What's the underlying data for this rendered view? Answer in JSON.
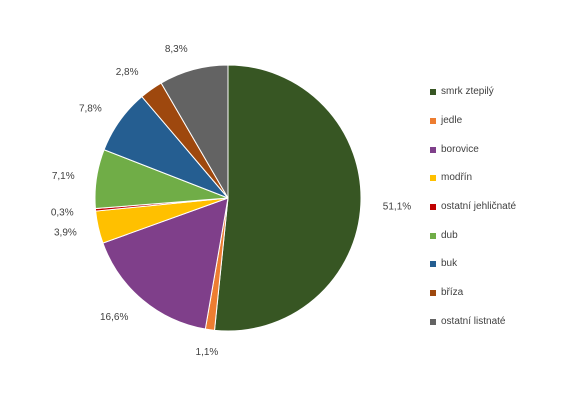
{
  "chart_data": {
    "type": "pie",
    "title": "",
    "legend_position": "right",
    "series": [
      {
        "name": "smrk ztepilý",
        "value": 51.1,
        "label": "51,1%",
        "color": "#375623"
      },
      {
        "name": "jedle",
        "value": 1.1,
        "label": "1,1%",
        "color": "#ed7d31"
      },
      {
        "name": "borovice",
        "value": 16.6,
        "label": "16,6%",
        "color": "#7f3f8a"
      },
      {
        "name": "modřín",
        "value": 3.9,
        "label": "3,9%",
        "color": "#ffc000"
      },
      {
        "name": "ostatní jehličnaté",
        "value": 0.3,
        "label": "0,3%",
        "color": "#c00000"
      },
      {
        "name": "dub",
        "value": 7.1,
        "label": "7,1%",
        "color": "#70ad47"
      },
      {
        "name": "buk",
        "value": 7.8,
        "label": "7,8%",
        "color": "#255e91"
      },
      {
        "name": "bříza",
        "value": 2.8,
        "label": "2,8%",
        "color": "#9e480e"
      },
      {
        "name": "ostatní listnaté",
        "value": 8.3,
        "label": "8,3%",
        "color": "#636363"
      }
    ]
  }
}
